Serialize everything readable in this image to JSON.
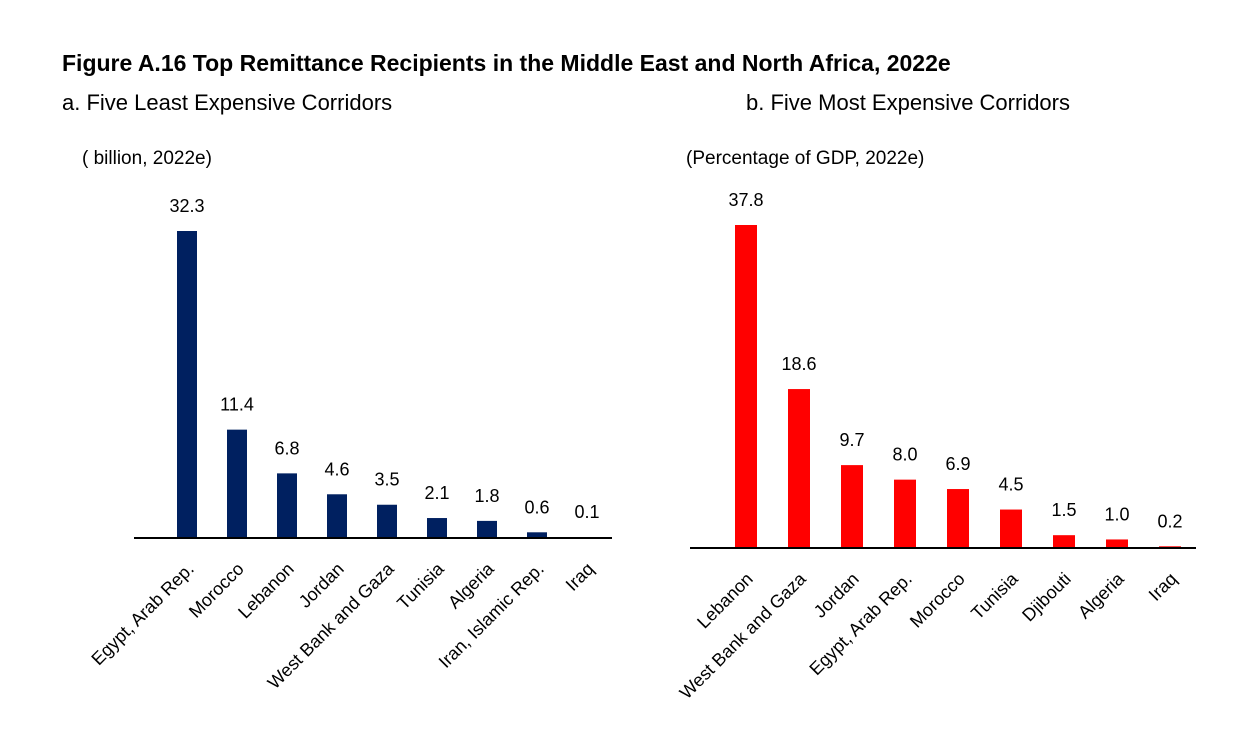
{
  "figure_title": "Figure A.16 Top Remittance Recipients in the Middle East and North Africa, 2022e",
  "chart_data": [
    {
      "type": "bar",
      "title": "a. Five Least Expensive Corridors",
      "ylabel": "(   billion, 2022e)",
      "categories": [
        "Egypt, Arab Rep.",
        "Morocco",
        "Lebanon",
        "Jordan",
        "West Bank and Gaza",
        "Tunisia",
        "Algeria",
        "Iran, Islamic Rep.",
        "Iraq"
      ],
      "values": [
        32.3,
        11.4,
        6.8,
        4.6,
        3.5,
        2.1,
        1.8,
        0.6,
        0.1
      ],
      "value_labels": [
        "32.3",
        "11.4",
        "6.8",
        "4.6",
        "3.5",
        "2.1",
        "1.8",
        "0.6",
        "0.1"
      ],
      "color": "#002060",
      "ylim": [
        0,
        32.3
      ],
      "grid": false,
      "legend": "none"
    },
    {
      "type": "bar",
      "title": "b. Five Most Expensive Corridors",
      "ylabel": "(Percentage of GDP, 2022e)",
      "categories": [
        "Lebanon",
        "West Bank and Gaza",
        "Jordan",
        "Egypt, Arab Rep.",
        "Morocco",
        "Tunisia",
        "Djibouti",
        "Algeria",
        "Iraq"
      ],
      "values": [
        37.8,
        18.6,
        9.7,
        8.0,
        6.9,
        4.5,
        1.5,
        1.0,
        0.2
      ],
      "value_labels": [
        "37.8",
        "18.6",
        "9.7",
        "8.0",
        "6.9",
        "4.5",
        "1.5",
        "1.0",
        "0.2"
      ],
      "color": "#ff0000",
      "ylim": [
        0,
        37.8
      ],
      "grid": false,
      "legend": "none"
    }
  ]
}
